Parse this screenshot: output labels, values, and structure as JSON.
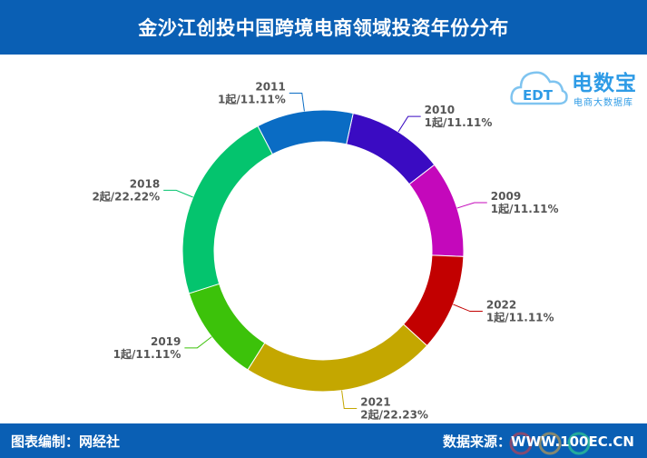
{
  "header": {
    "title": "金沙江创投中国跨境电商领域投资年份分布"
  },
  "logo": {
    "brand": "电数宝",
    "tagline": "电商大数据库",
    "badge": "EDT"
  },
  "footer": {
    "editor": "图表编制：网经社",
    "source": "数据来源：WWW.100EC.CN"
  },
  "colors": {
    "header_bg": "#0a5fb4",
    "footer_bg": "#0a5fb4",
    "label_text": "#555555",
    "logo_blue": "#2e9be6"
  },
  "chart_data": {
    "type": "pie",
    "donut": true,
    "title": "金沙江创投中国跨境电商领域投资年份分布",
    "unit": "起",
    "slices": [
      {
        "category": "2010",
        "count": 1,
        "percent": 11.11,
        "label_line1": "2010",
        "label_line2": "1起/11.11%",
        "color": "#3a0bc2"
      },
      {
        "category": "2009",
        "count": 1,
        "percent": 11.11,
        "label_line1": "2009",
        "label_line2": "1起/11.11%",
        "color": "#c408bb"
      },
      {
        "category": "2022",
        "count": 1,
        "percent": 11.11,
        "label_line1": "2022",
        "label_line2": "1起/11.11%",
        "color": "#c20000"
      },
      {
        "category": "2021",
        "count": 2,
        "percent": 22.23,
        "label_line1": "2021",
        "label_line2": "2起/22.23%",
        "color": "#c4a700"
      },
      {
        "category": "2019",
        "count": 1,
        "percent": 11.11,
        "label_line1": "2019",
        "label_line2": "1起/11.11%",
        "color": "#3cc20a"
      },
      {
        "category": "2018",
        "count": 2,
        "percent": 22.22,
        "label_line1": "2018",
        "label_line2": "2起/22.22%",
        "color": "#04c46e"
      },
      {
        "category": "2011",
        "count": 1,
        "percent": 11.11,
        "label_line1": "2011",
        "label_line2": "1起/11.11%",
        "color": "#0a6cc4"
      }
    ]
  }
}
